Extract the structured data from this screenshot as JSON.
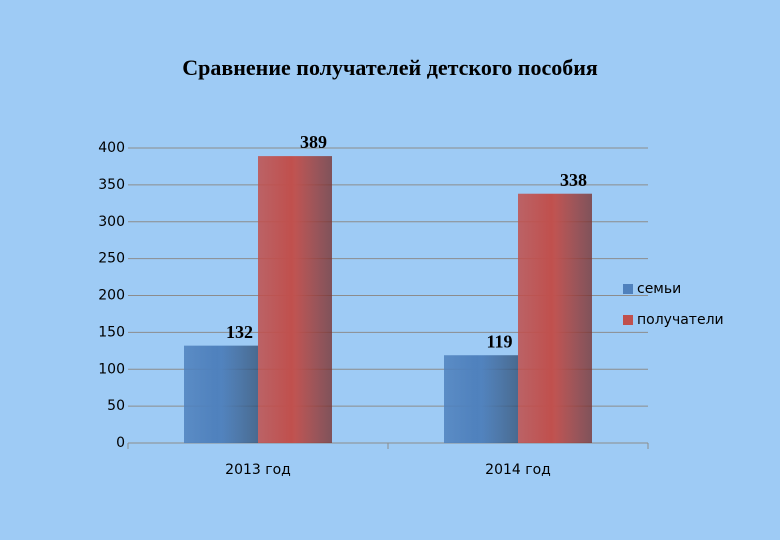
{
  "chart_data": {
    "type": "bar",
    "title": "Сравнение получателей детского пособия",
    "categories": [
      "2013 год",
      "2014 год"
    ],
    "series": [
      {
        "name": "семьи",
        "color": "#4f81bd",
        "values": [
          132,
          119
        ]
      },
      {
        "name": "получатели",
        "color": "#c0504d",
        "values": [
          389,
          338
        ]
      }
    ],
    "ylim": [
      0,
      400
    ],
    "yticks": [
      0,
      50,
      100,
      150,
      200,
      250,
      300,
      350,
      400
    ],
    "grid": true,
    "legend": "right"
  }
}
